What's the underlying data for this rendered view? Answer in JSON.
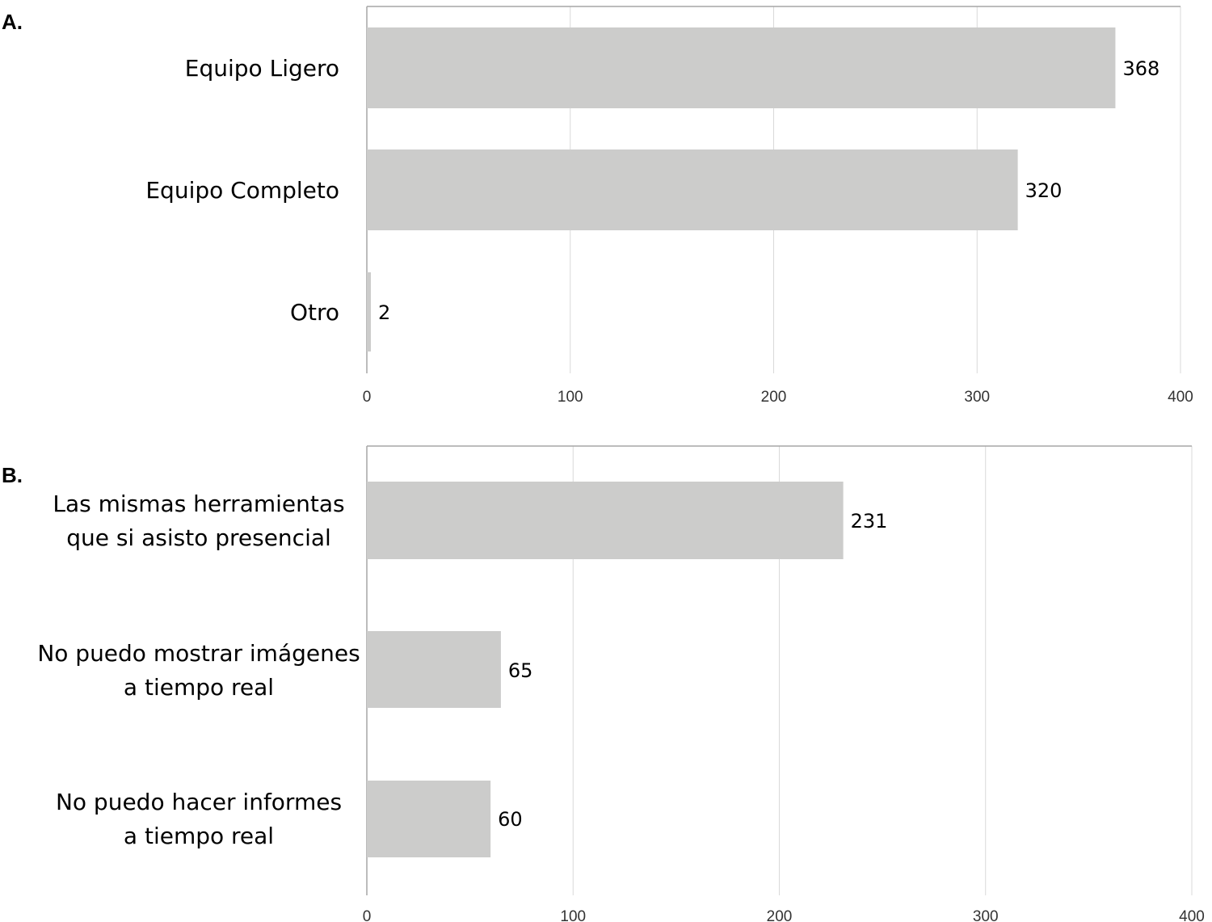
{
  "chart_data": [
    {
      "type": "bar",
      "orientation": "horizontal",
      "panel_label": "A.",
      "categories": [
        "Equipo Ligero",
        "Equipo Completo",
        "Otro"
      ],
      "values": [
        368,
        320,
        2
      ],
      "xlim": [
        0,
        400
      ],
      "xticks": [
        "0",
        "100",
        "200",
        "300",
        "400"
      ],
      "grid": true,
      "colors": {
        "bar": "#cccccb",
        "grid": "#d9d9d9"
      }
    },
    {
      "type": "bar",
      "orientation": "horizontal",
      "panel_label": "B.",
      "categories": [
        [
          "Las mismas herramientas",
          "que si asisto presencial"
        ],
        [
          "No puedo mostrar imágenes",
          "a tiempo real"
        ],
        [
          "No puedo hacer informes",
          "a tiempo real"
        ]
      ],
      "values": [
        231,
        65,
        60
      ],
      "xlim": [
        0,
        400
      ],
      "xticks": [
        "0",
        "100",
        "200",
        "300",
        "400"
      ],
      "grid": true,
      "colors": {
        "bar": "#cccccb",
        "grid": "#d9d9d9"
      }
    }
  ]
}
